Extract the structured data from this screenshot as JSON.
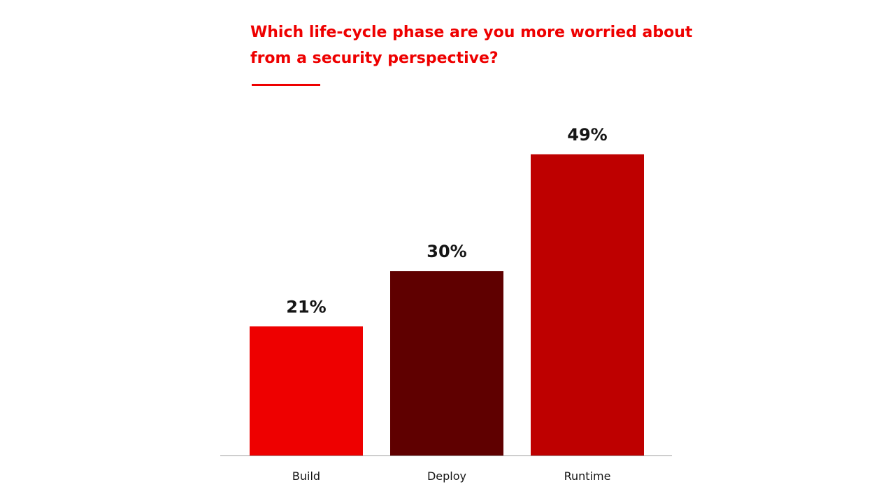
{
  "chart_data": {
    "type": "bar",
    "title_lines": [
      "Which life-cycle phase are you more worried about",
      "from a security perspective?"
    ],
    "categories": [
      "Build",
      "Deploy",
      "Runtime"
    ],
    "values": [
      21,
      30,
      49
    ],
    "value_labels": [
      "21%",
      "30%",
      "49%"
    ],
    "bar_colors": [
      "#ee0000",
      "#5f0000",
      "#be0000"
    ],
    "title_color": "#ee0000",
    "ylim": [
      0,
      55.7
    ],
    "grid": false,
    "legend": "none",
    "axis_line_color": "#9e9e9e"
  }
}
